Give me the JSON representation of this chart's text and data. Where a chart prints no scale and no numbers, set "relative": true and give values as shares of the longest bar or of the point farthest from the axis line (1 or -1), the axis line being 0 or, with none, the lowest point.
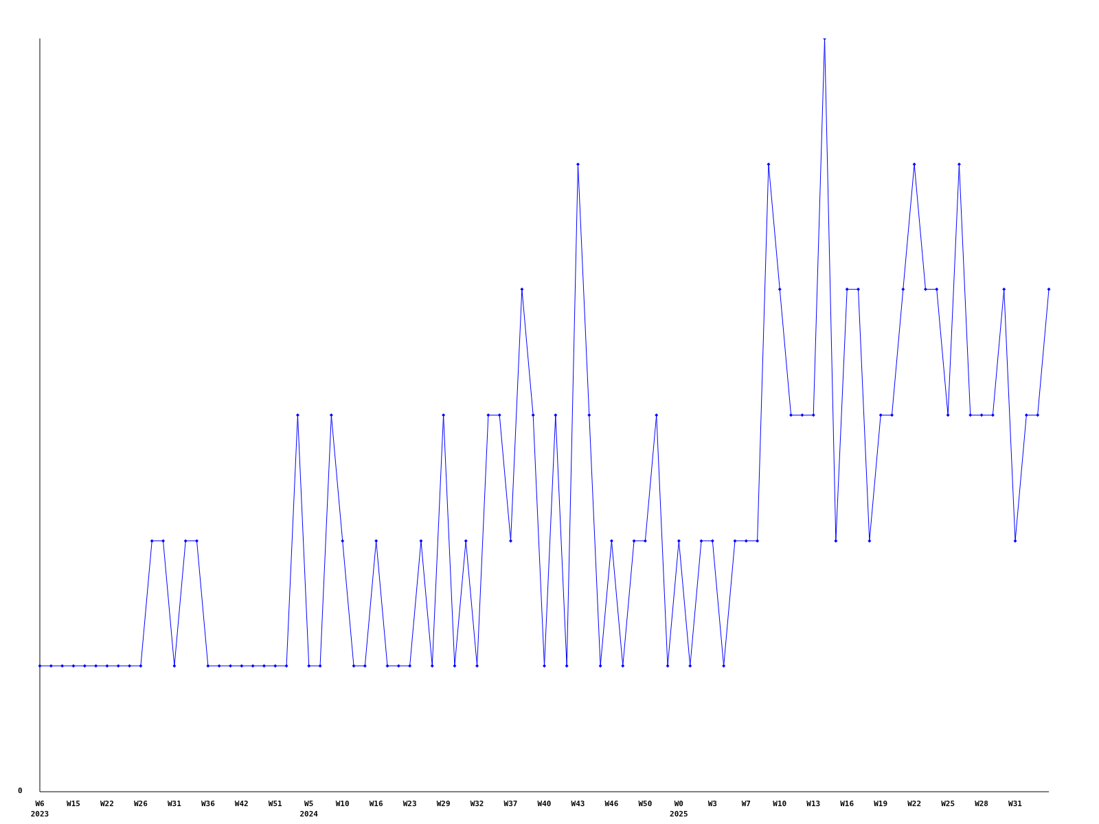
{
  "chart_data": {
    "type": "line",
    "relative": true,
    "grid": false,
    "marker": "diamond",
    "line_style": "solid",
    "annotations": [
      "0"
    ],
    "categories": [
      "W6\n2023",
      null,
      null,
      "W15",
      null,
      null,
      "W22",
      null,
      null,
      "W26",
      null,
      null,
      "W31",
      null,
      null,
      "W36",
      null,
      null,
      "W42",
      null,
      null,
      "W51",
      null,
      null,
      "W5\n2024",
      null,
      null,
      "W10",
      null,
      null,
      "W16",
      null,
      null,
      "W23",
      null,
      null,
      "W29",
      null,
      null,
      "W32",
      null,
      null,
      "W37",
      null,
      null,
      "W40",
      null,
      null,
      "W43",
      null,
      null,
      "W46",
      null,
      null,
      "W50",
      null,
      null,
      "W0\n2025",
      null,
      null,
      "W3",
      null,
      null,
      "W7",
      null,
      null,
      "W10",
      null,
      null,
      "W13",
      null,
      null,
      "W16",
      null,
      null,
      "W19",
      null,
      null,
      "W22",
      null,
      null,
      "W25",
      null,
      null,
      "W28",
      null,
      null,
      "W31",
      null,
      null,
      null
    ],
    "series": [
      {
        "color": "#0000ff",
        "values": [
          0.167,
          0.167,
          0.167,
          0.167,
          0.167,
          0.167,
          0.167,
          0.167,
          0.167,
          0.167,
          0.333,
          0.333,
          0.167,
          0.333,
          0.333,
          0.167,
          0.167,
          0.167,
          0.167,
          0.167,
          0.167,
          0.167,
          0.167,
          0.5,
          0.167,
          0.167,
          0.5,
          0.333,
          0.167,
          0.167,
          0.333,
          0.167,
          0.167,
          0.167,
          0.333,
          0.167,
          0.5,
          0.167,
          0.333,
          0.167,
          0.5,
          0.5,
          0.333,
          0.667,
          0.5,
          0.167,
          0.5,
          0.167,
          0.833,
          0.5,
          0.167,
          0.333,
          0.167,
          0.333,
          0.333,
          0.5,
          0.167,
          0.333,
          0.167,
          0.333,
          0.333,
          0.167,
          0.333,
          0.333,
          0.333,
          0.833,
          0.667,
          0.5,
          0.5,
          0.5,
          1,
          0.333,
          0.667,
          0.667,
          0.333,
          0.5,
          0.5,
          0.667,
          0.833,
          0.667,
          0.667,
          0.5,
          0.833,
          0.5,
          0.5,
          0.5,
          0.667,
          0.333,
          0.5,
          0.5,
          0.667
        ]
      }
    ]
  }
}
